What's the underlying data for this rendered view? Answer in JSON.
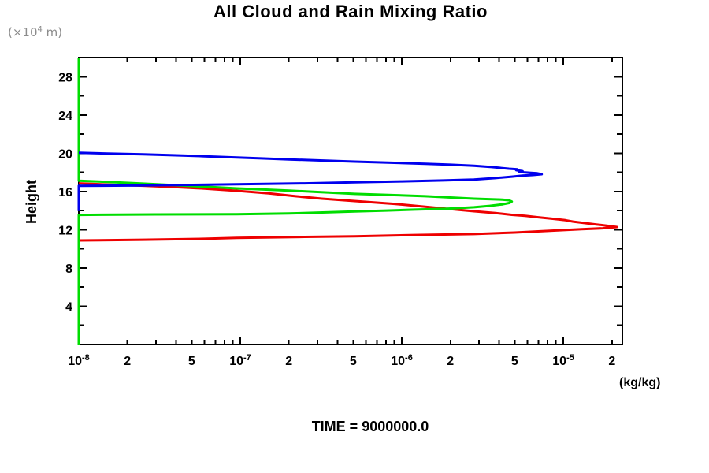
{
  "chart_data": {
    "type": "line",
    "title": "All Cloud and Rain Mixing Ratio",
    "ylabel": "Height",
    "y_units": {
      "prefix": "(×10",
      "exp": "4",
      "suffix": " m)"
    },
    "x_units_label": "(kg/kg)",
    "time_label": "TIME = 9000000.0",
    "x_scale": "log",
    "xlim": [
      1e-08,
      2.32e-05
    ],
    "ylim": [
      0,
      30
    ],
    "grid": false,
    "legend": "none",
    "frame_color": "#000000",
    "x_ticks": [
      {
        "v": 1e-08,
        "base": "10",
        "exp": "-8",
        "major": true
      },
      {
        "v": 2e-08,
        "label": "2"
      },
      {
        "v": 3e-08
      },
      {
        "v": 4e-08
      },
      {
        "v": 5e-08,
        "label": "5"
      },
      {
        "v": 6e-08
      },
      {
        "v": 7e-08
      },
      {
        "v": 8e-08
      },
      {
        "v": 9e-08
      },
      {
        "v": 1e-07,
        "base": "10",
        "exp": "-7",
        "major": true
      },
      {
        "v": 2e-07,
        "label": "2"
      },
      {
        "v": 3e-07
      },
      {
        "v": 4e-07
      },
      {
        "v": 5e-07,
        "label": "5"
      },
      {
        "v": 6e-07
      },
      {
        "v": 7e-07
      },
      {
        "v": 8e-07
      },
      {
        "v": 9e-07
      },
      {
        "v": 1e-06,
        "base": "10",
        "exp": "-6",
        "major": true
      },
      {
        "v": 2e-06,
        "label": "2"
      },
      {
        "v": 3e-06
      },
      {
        "v": 4e-06
      },
      {
        "v": 5e-06,
        "label": "5"
      },
      {
        "v": 6e-06
      },
      {
        "v": 7e-06
      },
      {
        "v": 8e-06
      },
      {
        "v": 9e-06
      },
      {
        "v": 1e-05,
        "base": "10",
        "exp": "-5",
        "major": true
      },
      {
        "v": 2e-05,
        "label": "2"
      }
    ],
    "y_ticks": [
      {
        "v": 2
      },
      {
        "v": 4,
        "label": "4"
      },
      {
        "v": 6
      },
      {
        "v": 8,
        "label": "8"
      },
      {
        "v": 10
      },
      {
        "v": 12,
        "label": "12"
      },
      {
        "v": 14
      },
      {
        "v": 16,
        "label": "16"
      },
      {
        "v": 18
      },
      {
        "v": 20,
        "label": "20"
      },
      {
        "v": 22
      },
      {
        "v": 24,
        "label": "24"
      },
      {
        "v": 26
      },
      {
        "v": 28,
        "label": "28"
      }
    ],
    "series": [
      {
        "name": "red-profile",
        "color": "#ee0000",
        "points": [
          [
            1e-08,
            10.88
          ],
          [
            2.5e-08,
            10.95
          ],
          [
            6e-08,
            11.05
          ],
          [
            9.5e-08,
            11.15
          ],
          [
            2.5e-07,
            11.25
          ],
          [
            5.1e-07,
            11.32
          ],
          [
            1.2e-06,
            11.45
          ],
          [
            2.8e-06,
            11.55
          ],
          [
            5e-06,
            11.7
          ],
          [
            8.5e-06,
            11.9
          ],
          [
            1.3e-05,
            12.05
          ],
          [
            1.75e-05,
            12.15
          ],
          [
            2.15e-05,
            12.28
          ],
          [
            1.9e-05,
            12.4
          ],
          [
            1.6e-05,
            12.55
          ],
          [
            1.35e-05,
            12.7
          ],
          [
            1.15e-05,
            12.85
          ],
          [
            1.03e-05,
            13.0
          ],
          [
            8.5e-06,
            13.15
          ],
          [
            7e-06,
            13.3
          ],
          [
            5.8e-06,
            13.45
          ],
          [
            4.8e-06,
            13.56
          ],
          [
            3.8e-06,
            13.75
          ],
          [
            2.8e-06,
            13.93
          ],
          [
            2e-06,
            14.15
          ],
          [
            1.4e-06,
            14.4
          ],
          [
            9e-07,
            14.7
          ],
          [
            5.1e-07,
            15.0
          ],
          [
            3.2e-07,
            15.25
          ],
          [
            2.2e-07,
            15.5
          ],
          [
            1.5e-07,
            15.8
          ],
          [
            9.5e-08,
            16.07
          ],
          [
            6e-08,
            16.3
          ],
          [
            4e-08,
            16.45
          ],
          [
            2.5e-08,
            16.6
          ],
          [
            1.5e-08,
            16.72
          ],
          [
            1e-08,
            16.85
          ]
        ]
      },
      {
        "name": "green-profile",
        "color": "#00dd00",
        "points": [
          [
            1e-08,
            0
          ],
          [
            1e-08,
            13.55
          ],
          [
            3e-08,
            13.6
          ],
          [
            9.5e-08,
            13.62
          ],
          [
            2e-07,
            13.7
          ],
          [
            5.1e-07,
            13.9
          ],
          [
            8e-07,
            14.0
          ],
          [
            1.2e-06,
            14.1
          ],
          [
            1.9e-06,
            14.2
          ],
          [
            2.8e-06,
            14.35
          ],
          [
            3.5e-06,
            14.5
          ],
          [
            4.2e-06,
            14.65
          ],
          [
            4.65e-06,
            14.8
          ],
          [
            4.8e-06,
            14.95
          ],
          [
            4.6e-06,
            15.08
          ],
          [
            4.2e-06,
            15.15
          ],
          [
            3.6e-06,
            15.18
          ],
          [
            2.8e-06,
            15.25
          ],
          [
            2e-06,
            15.37
          ],
          [
            1.4e-06,
            15.5
          ],
          [
            9e-07,
            15.62
          ],
          [
            5.1e-07,
            15.75
          ],
          [
            3e-07,
            15.95
          ],
          [
            2e-07,
            16.1
          ],
          [
            1.4e-07,
            16.2
          ],
          [
            9.5e-08,
            16.32
          ],
          [
            6e-08,
            16.5
          ],
          [
            4e-08,
            16.65
          ],
          [
            2.5e-08,
            16.82
          ],
          [
            1.5e-08,
            17.0
          ],
          [
            1e-08,
            17.12
          ],
          [
            1e-08,
            30
          ]
        ]
      },
      {
        "name": "blue-profile",
        "color": "#0000ee",
        "points": [
          [
            1e-08,
            13.95
          ],
          [
            1e-08,
            16.58
          ],
          [
            2.5e-08,
            16.62
          ],
          [
            9.5e-08,
            16.75
          ],
          [
            2.5e-07,
            16.85
          ],
          [
            5.1e-07,
            16.95
          ],
          [
            1e-06,
            17.05
          ],
          [
            1.8e-06,
            17.15
          ],
          [
            2.8e-06,
            17.25
          ],
          [
            3.8e-06,
            17.4
          ],
          [
            4.8e-06,
            17.55
          ],
          [
            5.6e-06,
            17.65
          ],
          [
            6.5e-06,
            17.72
          ],
          [
            7.35e-06,
            17.8
          ],
          [
            6.9e-06,
            17.9
          ],
          [
            6.3e-06,
            17.95
          ],
          [
            5.7e-06,
            18.0
          ],
          [
            5.35e-06,
            18.05
          ],
          [
            5.6e-06,
            18.12
          ],
          [
            5.1e-06,
            18.22
          ],
          [
            5.2e-06,
            18.32
          ],
          [
            4.6e-06,
            18.38
          ],
          [
            3.6e-06,
            18.55
          ],
          [
            2.8e-06,
            18.68
          ],
          [
            2e-06,
            18.8
          ],
          [
            1.4e-06,
            18.9
          ],
          [
            9e-07,
            19.0
          ],
          [
            5.1e-07,
            19.12
          ],
          [
            3e-07,
            19.25
          ],
          [
            2e-07,
            19.35
          ],
          [
            1.4e-07,
            19.45
          ],
          [
            9.5e-08,
            19.55
          ],
          [
            6e-08,
            19.68
          ],
          [
            4e-08,
            19.78
          ],
          [
            2.5e-08,
            19.88
          ],
          [
            1.5e-08,
            19.97
          ],
          [
            1e-08,
            20.05
          ]
        ]
      }
    ]
  }
}
